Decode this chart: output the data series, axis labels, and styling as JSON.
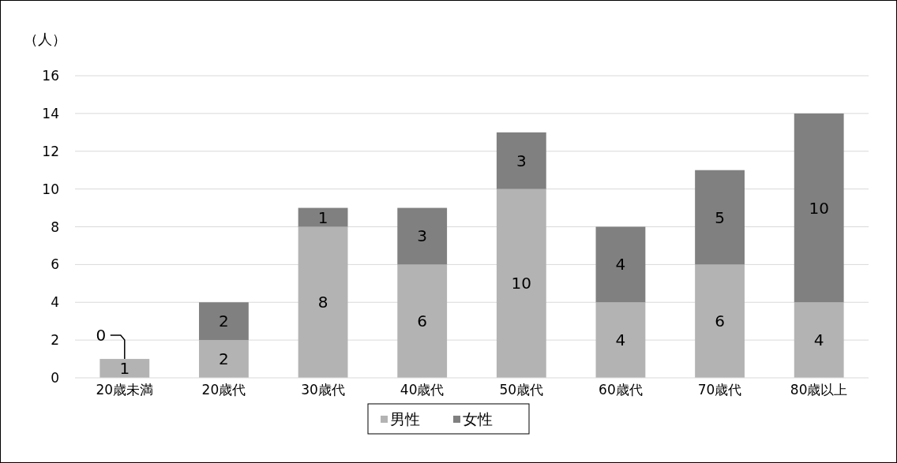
{
  "chart_data": {
    "type": "bar",
    "ylabel": "（人）",
    "categories": [
      "20歳未満",
      "20歳代",
      "30歳代",
      "40歳代",
      "50歳代",
      "60歳代",
      "70歳代",
      "80歳以上"
    ],
    "series": [
      {
        "name": "男性",
        "color": "#b3b3b3",
        "values": [
          1,
          2,
          8,
          6,
          10,
          4,
          6,
          4
        ]
      },
      {
        "name": "女性",
        "color": "#808080",
        "values": [
          0,
          2,
          1,
          3,
          3,
          4,
          5,
          10
        ]
      }
    ],
    "stacked": true,
    "ylim": [
      0,
      16
    ],
    "yticks": [
      0,
      2,
      4,
      6,
      8,
      10,
      12,
      14,
      16
    ],
    "grid": "y",
    "legend": "bottom",
    "data_labels": true
  }
}
